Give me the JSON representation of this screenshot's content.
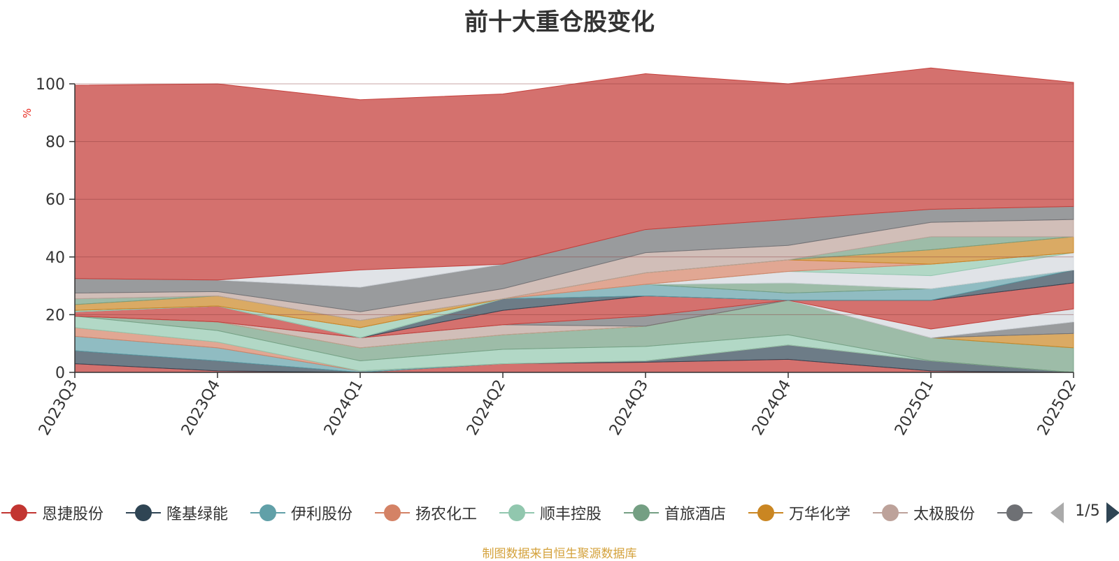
{
  "chart_data": {
    "type": "area",
    "stacked": true,
    "title": "前十大重仓股变化",
    "ylabel": "%",
    "ylim": [
      0,
      100
    ],
    "yticks": [
      0,
      20,
      40,
      60,
      80,
      100
    ],
    "grid": true,
    "legend_position": "bottom",
    "x": [
      "2023Q3",
      "2023Q4",
      "2024Q1",
      "2024Q2",
      "2024Q3",
      "2024Q4",
      "2025Q1",
      "2025Q2"
    ],
    "series": [
      {
        "name": "恩捷股份",
        "color": "#c23531",
        "values": [
          3.0,
          0.5,
          0.0,
          3.0,
          3.5,
          4.5,
          0.5,
          0.0
        ]
      },
      {
        "name": "隆基绿能",
        "color": "#2f4554",
        "values": [
          4.5,
          3.5,
          0.0,
          0.0,
          0.5,
          5.0,
          3.5,
          0.0
        ]
      },
      {
        "name": "伊利股份",
        "color": "#61a0a8",
        "values": [
          5.0,
          4.5,
          0.5,
          0.0,
          0.0,
          0.0,
          0.0,
          0.0
        ]
      },
      {
        "name": "扬农化工",
        "color": "#d48265",
        "values": [
          3.0,
          2.0,
          0.0,
          0.0,
          0.0,
          0.0,
          0.0,
          0.0
        ]
      },
      {
        "name": "顺丰控股",
        "color": "#91c7ae",
        "values": [
          4.0,
          4.0,
          3.5,
          5.0,
          5.0,
          3.5,
          0.0,
          0.0
        ]
      },
      {
        "name": "首旅酒店",
        "color": "#749f83",
        "values": [
          0.0,
          3.0,
          4.5,
          5.0,
          7.0,
          12.0,
          8.0,
          8.5
        ]
      },
      {
        "name": "万华化学",
        "color": "#ca8622",
        "values": [
          0.0,
          0.0,
          0.0,
          0.0,
          0.0,
          0.0,
          0.0,
          5.0
        ]
      },
      {
        "name": "太极股份",
        "color": "#bda29a",
        "values": [
          0.0,
          0.0,
          3.5,
          3.5,
          0.0,
          0.0,
          0.0,
          0.0
        ]
      },
      {
        "name": "",
        "color": "#6e7074",
        "values": [
          0.0,
          0.0,
          0.0,
          0.0,
          3.5,
          0.0,
          0.0,
          4.0
        ]
      },
      {
        "name": "",
        "color": "#d3d7dd",
        "values": [
          0.0,
          0.0,
          0.0,
          0.0,
          0.0,
          0.0,
          3.0,
          4.5
        ]
      },
      {
        "name": "",
        "color": "#c23531",
        "values": [
          1.5,
          5.5,
          0.0,
          5.0,
          7.0,
          0.0,
          10.0,
          9.0
        ]
      },
      {
        "name": "",
        "color": "#2f4554",
        "values": [
          0.0,
          0.0,
          0.0,
          4.0,
          0.0,
          0.0,
          0.0,
          4.5
        ]
      },
      {
        "name": "",
        "color": "#61a0a8",
        "values": [
          0.0,
          0.0,
          0.0,
          0.0,
          4.0,
          2.5,
          4.0,
          0.0
        ]
      },
      {
        "name": "",
        "color": "#749f83",
        "values": [
          0.0,
          0.0,
          0.0,
          0.0,
          0.0,
          3.5,
          0.0,
          0.0
        ]
      },
      {
        "name": "",
        "color": "#d3d7dd",
        "values": [
          0.0,
          0.0,
          0.0,
          0.0,
          0.0,
          4.0,
          4.5,
          6.0
        ]
      },
      {
        "name": "",
        "color": "#91c7ae",
        "values": [
          0.5,
          0.0,
          3.5,
          0.0,
          0.0,
          0.0,
          4.0,
          0.0
        ]
      },
      {
        "name": "",
        "color": "#d48265",
        "values": [
          0.0,
          0.0,
          0.0,
          0.0,
          4.0,
          4.0,
          0.0,
          0.0
        ]
      },
      {
        "name": "",
        "color": "#ca8622",
        "values": [
          2.0,
          3.5,
          2.5,
          0.0,
          0.0,
          0.0,
          5.0,
          5.5
        ]
      },
      {
        "name": "",
        "color": "#749f83",
        "values": [
          2.0,
          0.0,
          0.0,
          0.0,
          0.0,
          0.0,
          4.5,
          0.0
        ]
      },
      {
        "name": "",
        "color": "#bda29a",
        "values": [
          2.0,
          1.5,
          3.0,
          3.5,
          7.0,
          5.0,
          5.0,
          6.0
        ]
      },
      {
        "name": "",
        "color": "#6e7074",
        "values": [
          5.0,
          4.0,
          8.5,
          8.5,
          8.0,
          9.0,
          4.5,
          4.5
        ]
      },
      {
        "name": "",
        "color": "#d3d7dd",
        "values": [
          0.0,
          0.0,
          6.0,
          0.0,
          0.0,
          0.0,
          0.0,
          0.0
        ]
      },
      {
        "name": "",
        "color": "#c23531",
        "values": [
          67.0,
          68.0,
          59.0,
          59.0,
          54.0,
          47.0,
          49.0,
          43.0
        ]
      }
    ]
  },
  "legend": {
    "items": [
      {
        "label": "恩捷股份",
        "color": "#c23531"
      },
      {
        "label": "隆基绿能",
        "color": "#2f4554"
      },
      {
        "label": "伊利股份",
        "color": "#61a0a8"
      },
      {
        "label": "扬农化工",
        "color": "#d48265"
      },
      {
        "label": "顺丰控股",
        "color": "#91c7ae"
      },
      {
        "label": "首旅酒店",
        "color": "#749f83"
      },
      {
        "label": "万华化学",
        "color": "#ca8622"
      },
      {
        "label": "太极股份",
        "color": "#bda29a"
      },
      {
        "label": "",
        "color": "#6e7074"
      }
    ],
    "pager": {
      "text": "1/5",
      "prev_icon": "triangle-left-icon",
      "next_icon": "triangle-right-icon"
    }
  },
  "source_note": "制图数据来自恒生聚源数据库"
}
